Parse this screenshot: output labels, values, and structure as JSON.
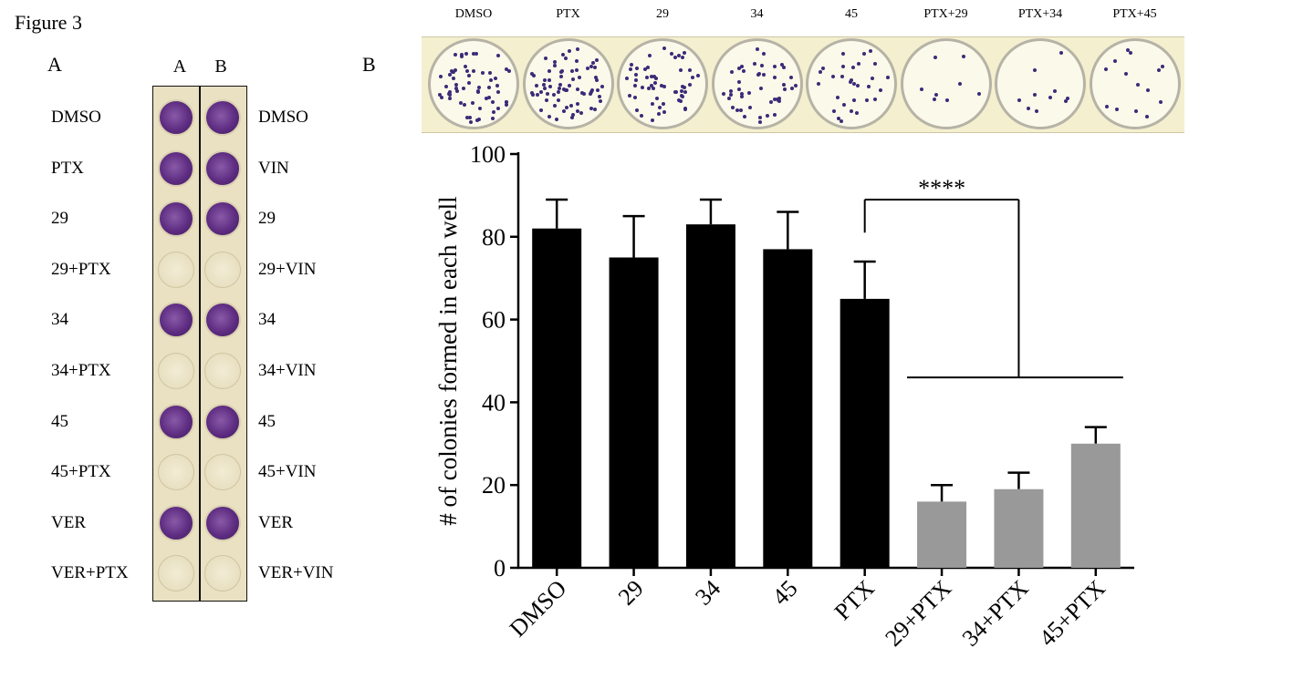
{
  "figure_title": "Figure 3",
  "panel_a": {
    "letter": "A",
    "column_headers": [
      "A",
      "B"
    ],
    "rows": [
      {
        "left": "DMSO",
        "right": "DMSO",
        "a_stained": true,
        "b_stained": true
      },
      {
        "left": "PTX",
        "right": "VIN",
        "a_stained": true,
        "b_stained": true
      },
      {
        "left": "29",
        "right": "29",
        "a_stained": true,
        "b_stained": true
      },
      {
        "left": "29+PTX",
        "right": "29+VIN",
        "a_stained": false,
        "b_stained": false
      },
      {
        "left": "34",
        "right": "34",
        "a_stained": true,
        "b_stained": true
      },
      {
        "left": "34+PTX",
        "right": "34+VIN",
        "a_stained": false,
        "b_stained": false
      },
      {
        "left": "45",
        "right": "45",
        "a_stained": true,
        "b_stained": true
      },
      {
        "left": "45+PTX",
        "right": "45+VIN",
        "a_stained": false,
        "b_stained": false
      },
      {
        "left": "VER",
        "right": "VER",
        "a_stained": true,
        "b_stained": true
      },
      {
        "left": "VER+PTX",
        "right": "VER+VIN",
        "a_stained": false,
        "b_stained": false
      }
    ]
  },
  "panel_b": {
    "letter": "B",
    "well_labels": [
      "DMSO",
      "PTX",
      "29",
      "34",
      "45",
      "PTX+29",
      "PTX+34",
      "PTX+45"
    ],
    "stain_color": "#3d2a78"
  },
  "chart_data": {
    "type": "bar",
    "categories": [
      "DMSO",
      "29",
      "34",
      "45",
      "PTX",
      "29+PTX",
      "34+PTX",
      "45+PTX"
    ],
    "values": [
      82,
      75,
      83,
      77,
      65,
      16,
      19,
      30
    ],
    "errors": [
      7,
      10,
      6,
      9,
      9,
      4,
      4,
      4
    ],
    "bar_colors": [
      "#000000",
      "#000000",
      "#000000",
      "#000000",
      "#000000",
      "#999999",
      "#999999",
      "#999999"
    ],
    "ylabel": "# of colonies formed in each well",
    "xlabel": "",
    "ylim": [
      0,
      100
    ],
    "yticks": [
      0,
      20,
      40,
      60,
      80,
      100
    ],
    "significance": {
      "label": "****",
      "from": "PTX",
      "to": [
        "29+PTX",
        "34+PTX",
        "45+PTX"
      ]
    },
    "grid": false
  }
}
